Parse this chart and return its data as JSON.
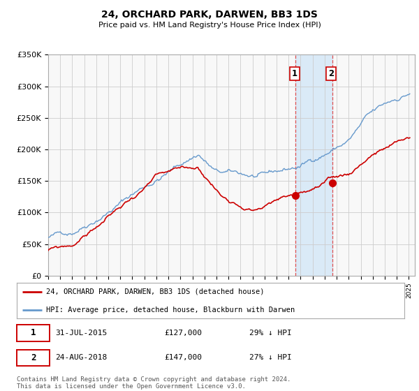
{
  "title": "24, ORCHARD PARK, DARWEN, BB3 1DS",
  "subtitle": "Price paid vs. HM Land Registry's House Price Index (HPI)",
  "ylim": [
    0,
    350000
  ],
  "yticks": [
    0,
    50000,
    100000,
    150000,
    200000,
    250000,
    300000,
    350000
  ],
  "ytick_labels": [
    "£0",
    "£50K",
    "£100K",
    "£150K",
    "£200K",
    "£250K",
    "£300K",
    "£350K"
  ],
  "xmin": 1995,
  "xmax": 2025.5,
  "sale1_date": 2015.58,
  "sale1_label": "1",
  "sale1_price": 127000,
  "sale2_date": 2018.65,
  "sale2_label": "2",
  "sale2_price": 147000,
  "shade_color": "#daeaf7",
  "vline_color": "#e05050",
  "hpi_color": "#6699cc",
  "price_color": "#cc0000",
  "legend_line1": "24, ORCHARD PARK, DARWEN, BB3 1DS (detached house)",
  "legend_line2": "HPI: Average price, detached house, Blackburn with Darwen",
  "footer": "Contains HM Land Registry data © Crown copyright and database right 2024.\nThis data is licensed under the Open Government Licence v3.0.",
  "background_color": "#ffffff",
  "plot_bg_color": "#f8f8f8"
}
